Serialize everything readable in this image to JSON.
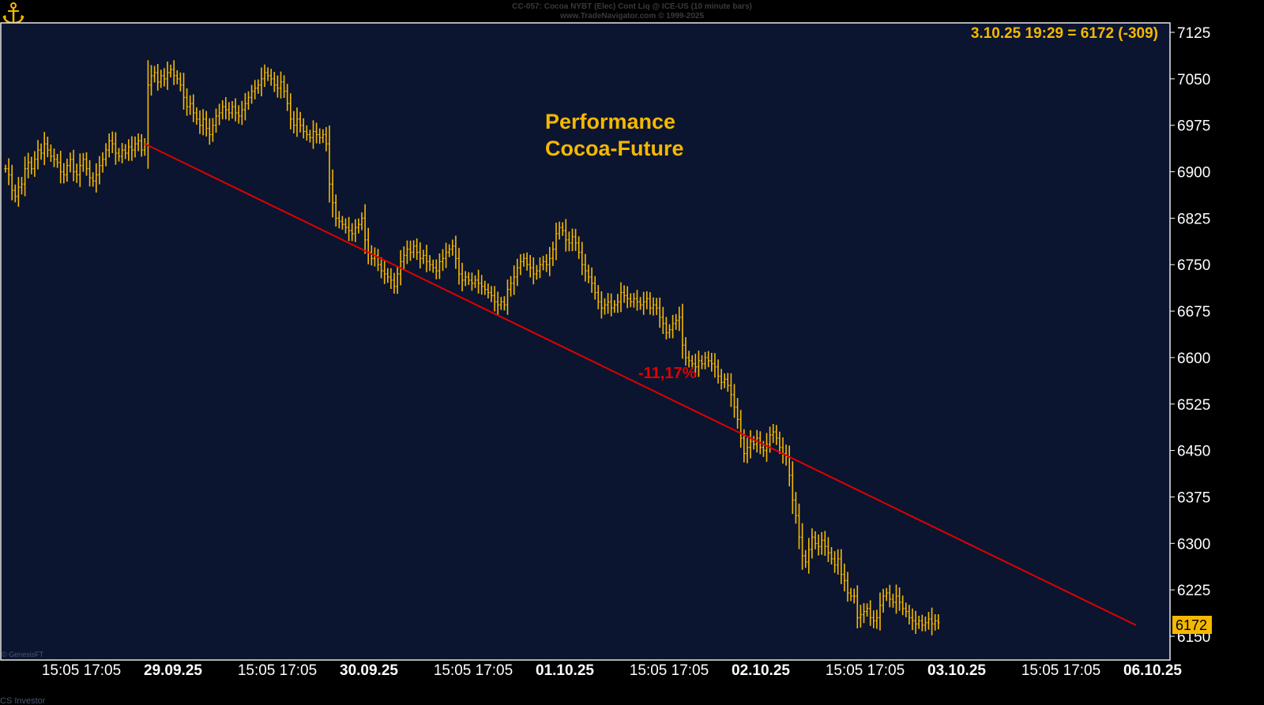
{
  "header": {
    "line1": "CC-057:  Cocoa NYBT (Elec) Cont Liq @ ICE-US  (10 minute bars)",
    "line2": "www.TradeNavigator.com © 1999-2025"
  },
  "footer": {
    "copyright": "© GenesisFT",
    "credit": "CS Investor"
  },
  "colors": {
    "background": "#0b1530",
    "bars": "#f5b800",
    "trend": "#e00000",
    "axis_text": "#ffffff",
    "annotation": "#f5b800"
  },
  "chart_data": {
    "type": "bar",
    "subtype": "ohlc",
    "last_quote": "3.10.25 19:29 = 6172 (-309)",
    "last_price": 6172,
    "annotations": {
      "title_line1": "Performance",
      "title_line2": "Cocoa-Future",
      "change": "-11,17%"
    },
    "y_axis": {
      "ticks": [
        7125,
        7050,
        6975,
        6900,
        6825,
        6750,
        6675,
        6600,
        6525,
        6450,
        6375,
        6300,
        6225,
        6150
      ],
      "ylim": [
        6125,
        7150
      ],
      "position": "right"
    },
    "x_axis": {
      "labels": [
        {
          "text": "15:05",
          "bold": false
        },
        {
          "text": "17:05",
          "bold": false
        },
        {
          "text": "29.09.25",
          "bold": true
        },
        {
          "text": "15:05",
          "bold": false
        },
        {
          "text": "17:05",
          "bold": false
        },
        {
          "text": "30.09.25",
          "bold": true
        },
        {
          "text": "15:05",
          "bold": false
        },
        {
          "text": "17:05",
          "bold": false
        },
        {
          "text": "01.10.25",
          "bold": true
        },
        {
          "text": "15:05",
          "bold": false
        },
        {
          "text": "17:05",
          "bold": false
        },
        {
          "text": "02.10.25",
          "bold": true
        },
        {
          "text": "15:05",
          "bold": false
        },
        {
          "text": "17:05",
          "bold": false
        },
        {
          "text": "03.10.25",
          "bold": true
        },
        {
          "text": "15:05",
          "bold": false
        },
        {
          "text": "17:05",
          "bold": false
        },
        {
          "text": "06.10.25",
          "bold": true
        }
      ]
    },
    "trend_line": {
      "start": {
        "bar": 43,
        "price": 6945
      },
      "end": {
        "bar": 349,
        "price": 6168
      }
    },
    "series": [
      {
        "values": [
          6905,
          6895,
          6870,
          6860,
          6875,
          6880,
          6905,
          6915,
          6905,
          6920,
          6935,
          6930,
          6945,
          6935,
          6925,
          6920,
          6915,
          6900,
          6895,
          6910,
          6920,
          6900,
          6895,
          6910,
          6920,
          6905,
          6890,
          6885,
          6895,
          6910,
          6920,
          6935,
          6950,
          6945,
          6930,
          6925,
          6935,
          6930,
          6940,
          6935,
          6945,
          6950,
          6935,
          6945,
          7040,
          7055,
          7060,
          7045,
          7055,
          7050,
          7060,
          7065,
          7055,
          7050,
          7040,
          7020,
          7005,
          7010,
          6995,
          6985,
          6975,
          6985,
          6970,
          6960,
          6975,
          6990,
          6995,
          7005,
          7000,
          6995,
          7005,
          6995,
          6990,
          7000,
          7010,
          7020,
          7030,
          7035,
          7040,
          7050,
          7060,
          7055,
          7050,
          7040,
          7035,
          7045,
          7030,
          7010,
          6985,
          6975,
          6985,
          6975,
          6965,
          6960,
          6955,
          6965,
          6960,
          6955,
          6960,
          6945,
          6880,
          6850,
          6825,
          6820,
          6815,
          6810,
          6805,
          6800,
          6810,
          6815,
          6825,
          6790,
          6770,
          6760,
          6765,
          6750,
          6740,
          6735,
          6730,
          6725,
          6715,
          6735,
          6755,
          6765,
          6775,
          6770,
          6780,
          6770,
          6760,
          6765,
          6755,
          6750,
          6745,
          6740,
          6755,
          6760,
          6770,
          6775,
          6780,
          6760,
          6735,
          6725,
          6730,
          6725,
          6720,
          6725,
          6720,
          6715,
          6710,
          6705,
          6700,
          6690,
          6685,
          6690,
          6685,
          6710,
          6720,
          6730,
          6745,
          6755,
          6760,
          6750,
          6745,
          6735,
          6740,
          6750,
          6755,
          6750,
          6760,
          6775,
          6800,
          6810,
          6805,
          6790,
          6785,
          6795,
          6785,
          6770,
          6750,
          6740,
          6730,
          6720,
          6705,
          6690,
          6680,
          6685,
          6690,
          6680,
          6685,
          6690,
          6705,
          6700,
          6695,
          6690,
          6695,
          6690,
          6685,
          6690,
          6695,
          6680,
          6685,
          6680,
          6665,
          6655,
          6640,
          6645,
          6655,
          6660,
          6665,
          6620,
          6600,
          6595,
          6590,
          6585,
          6595,
          6590,
          6600,
          6595,
          6590,
          6585,
          6570,
          6560,
          6565,
          6555,
          6540,
          6520,
          6500,
          6470,
          6445,
          6455,
          6465,
          6460,
          6470,
          6455,
          6450,
          6460,
          6475,
          6480,
          6470,
          6455,
          6445,
          6440,
          6410,
          6370,
          6345,
          6310,
          6280,
          6270,
          6290,
          6310,
          6300,
          6295,
          6305,
          6295,
          6285,
          6275,
          6265,
          6275,
          6250,
          6240,
          6220,
          6215,
          6215,
          6180,
          6185,
          6190,
          6195,
          6180,
          6175,
          6180,
          6200,
          6215,
          6220,
          6210,
          6205,
          6215,
          6205,
          6195,
          6190,
          6180,
          6175,
          6170,
          6175,
          6168,
          6172,
          6178,
          6170,
          6175,
          6172
        ]
      }
    ]
  }
}
